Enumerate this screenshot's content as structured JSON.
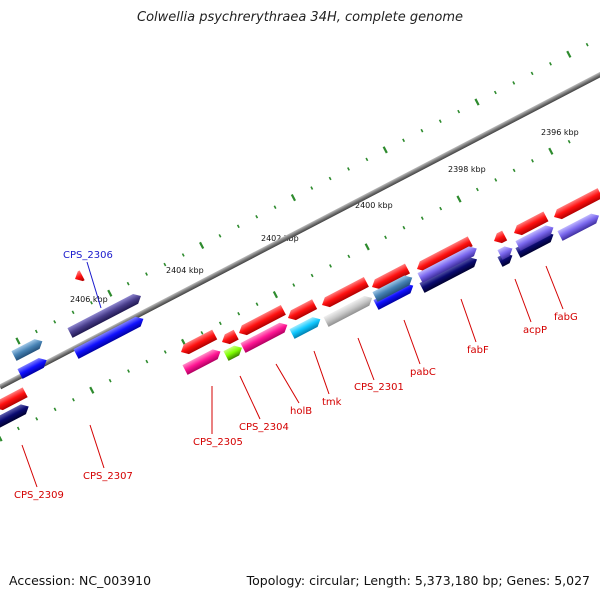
{
  "title": "Colwellia psychrerythraea 34H, complete genome",
  "footer": {
    "accession": "Accession: NC_003910",
    "summary": "Topology: circular; Length: 5,373,180 bp; Genes: 5,027"
  },
  "scale_labels": [
    "2396 kbp",
    "2398 kbp",
    "2400 kbp",
    "2402 kbp",
    "2404 kbp",
    "2406 kbp"
  ],
  "gene_labels": [
    "CPS_2306",
    "CPS_2309",
    "CPS_2307",
    "CPS_2305",
    "CPS_2304",
    "holB",
    "tmk",
    "CPS_2301",
    "pabC",
    "fabF",
    "acpP",
    "fabG"
  ],
  "colors": {
    "backbone": "#7a7a7a",
    "tick": "#2e8b2e",
    "label_red": "#d40000",
    "label_blue": "#1a1acc",
    "red": "#ff1010",
    "blue": "#1010ff",
    "navy": "#0a0a70",
    "pink": "#ff1493",
    "cyan": "#10c8ff",
    "grey": "#c8c8c8",
    "steel": "#4682b4",
    "slate": "#483d8b",
    "lavender": "#7b68ee",
    "lime": "#7fff00"
  }
}
